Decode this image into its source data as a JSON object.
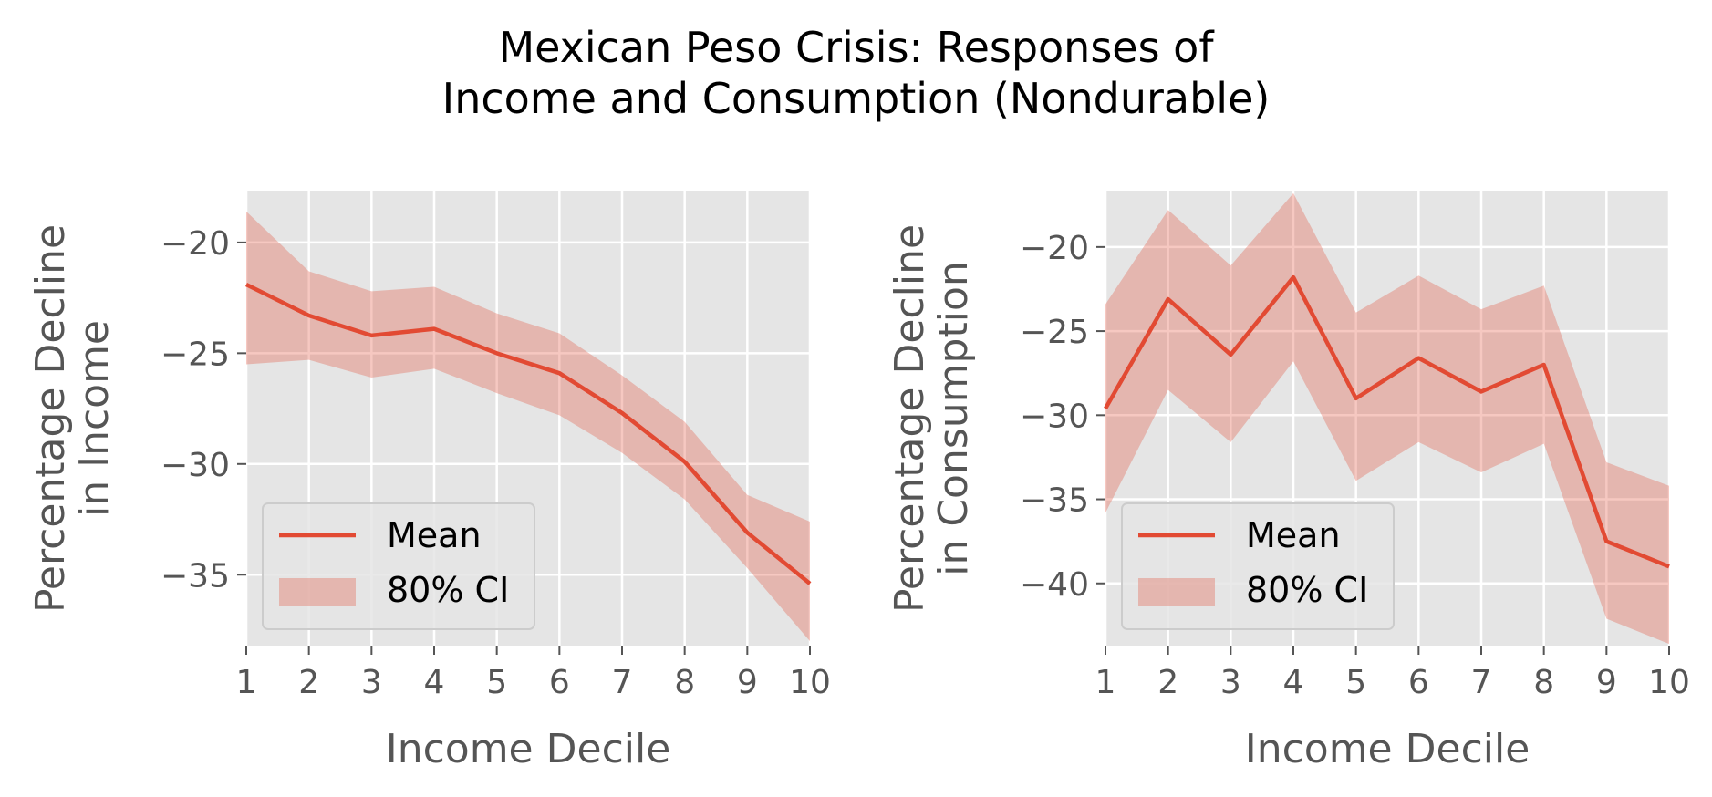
{
  "figure": {
    "title_line1": "Mexican Peso Crisis: Responses of",
    "title_line2": "Income and Consumption (Nondurable)"
  },
  "colors": {
    "line": "#E24A33",
    "band": "#E24A33",
    "panel_bg": "#E5E5E5",
    "grid": "#FFFFFF",
    "text": "#555555"
  },
  "chart_data": [
    {
      "type": "line",
      "title": "",
      "xlabel": "Income Decile",
      "ylabel_line1": "Percentage Decline",
      "ylabel_line2": "in Income",
      "x": [
        1,
        2,
        3,
        4,
        5,
        6,
        7,
        8,
        9,
        10
      ],
      "xticks": [
        "1",
        "2",
        "3",
        "4",
        "5",
        "6",
        "7",
        "8",
        "9",
        "10"
      ],
      "yticks": [
        -20,
        -25,
        -30,
        -35
      ],
      "ytick_labels": [
        "−20",
        "−25",
        "−30",
        "−35"
      ],
      "xlim": [
        1,
        10
      ],
      "ylim": [
        -38.2,
        -17.7
      ],
      "grid": true,
      "legend_position": "lower-left",
      "series": [
        {
          "name": "Mean",
          "kind": "line",
          "values": [
            -21.9,
            -23.3,
            -24.2,
            -23.9,
            -25.0,
            -25.9,
            -27.7,
            -29.9,
            -33.1,
            -35.4
          ]
        },
        {
          "name": "80% CI",
          "kind": "band",
          "upper": [
            -18.6,
            -21.3,
            -22.2,
            -22.0,
            -23.2,
            -24.1,
            -26.0,
            -28.1,
            -31.4,
            -32.6
          ],
          "lower": [
            -25.5,
            -25.3,
            -26.1,
            -25.7,
            -26.8,
            -27.8,
            -29.5,
            -31.6,
            -34.7,
            -38.0
          ]
        }
      ]
    },
    {
      "type": "line",
      "title": "",
      "xlabel": "Income Decile",
      "ylabel_line1": "Percentage Decline",
      "ylabel_line2": "in Consumption",
      "x": [
        1,
        2,
        3,
        4,
        5,
        6,
        7,
        8,
        9,
        10
      ],
      "xticks": [
        "1",
        "2",
        "3",
        "4",
        "5",
        "6",
        "7",
        "8",
        "9",
        "10"
      ],
      "yticks": [
        -20,
        -25,
        -30,
        -35,
        -40
      ],
      "ytick_labels": [
        "−20",
        "−25",
        "−30",
        "−35",
        "−40"
      ],
      "xlim": [
        1,
        10
      ],
      "ylim": [
        -43.7,
        -16.7
      ],
      "grid": true,
      "legend_position": "lower-left",
      "series": [
        {
          "name": "Mean",
          "kind": "line",
          "values": [
            -29.6,
            -23.1,
            -26.4,
            -21.8,
            -29.0,
            -26.6,
            -28.6,
            -27.0,
            -37.5,
            -39.0
          ]
        },
        {
          "name": "80% CI",
          "kind": "band",
          "upper": [
            -23.4,
            -17.8,
            -21.1,
            -16.8,
            -23.9,
            -21.7,
            -23.7,
            -22.3,
            -32.8,
            -34.2
          ],
          "lower": [
            -35.8,
            -28.5,
            -31.6,
            -26.8,
            -33.9,
            -31.6,
            -33.4,
            -31.7,
            -42.1,
            -43.6
          ]
        }
      ]
    }
  ]
}
